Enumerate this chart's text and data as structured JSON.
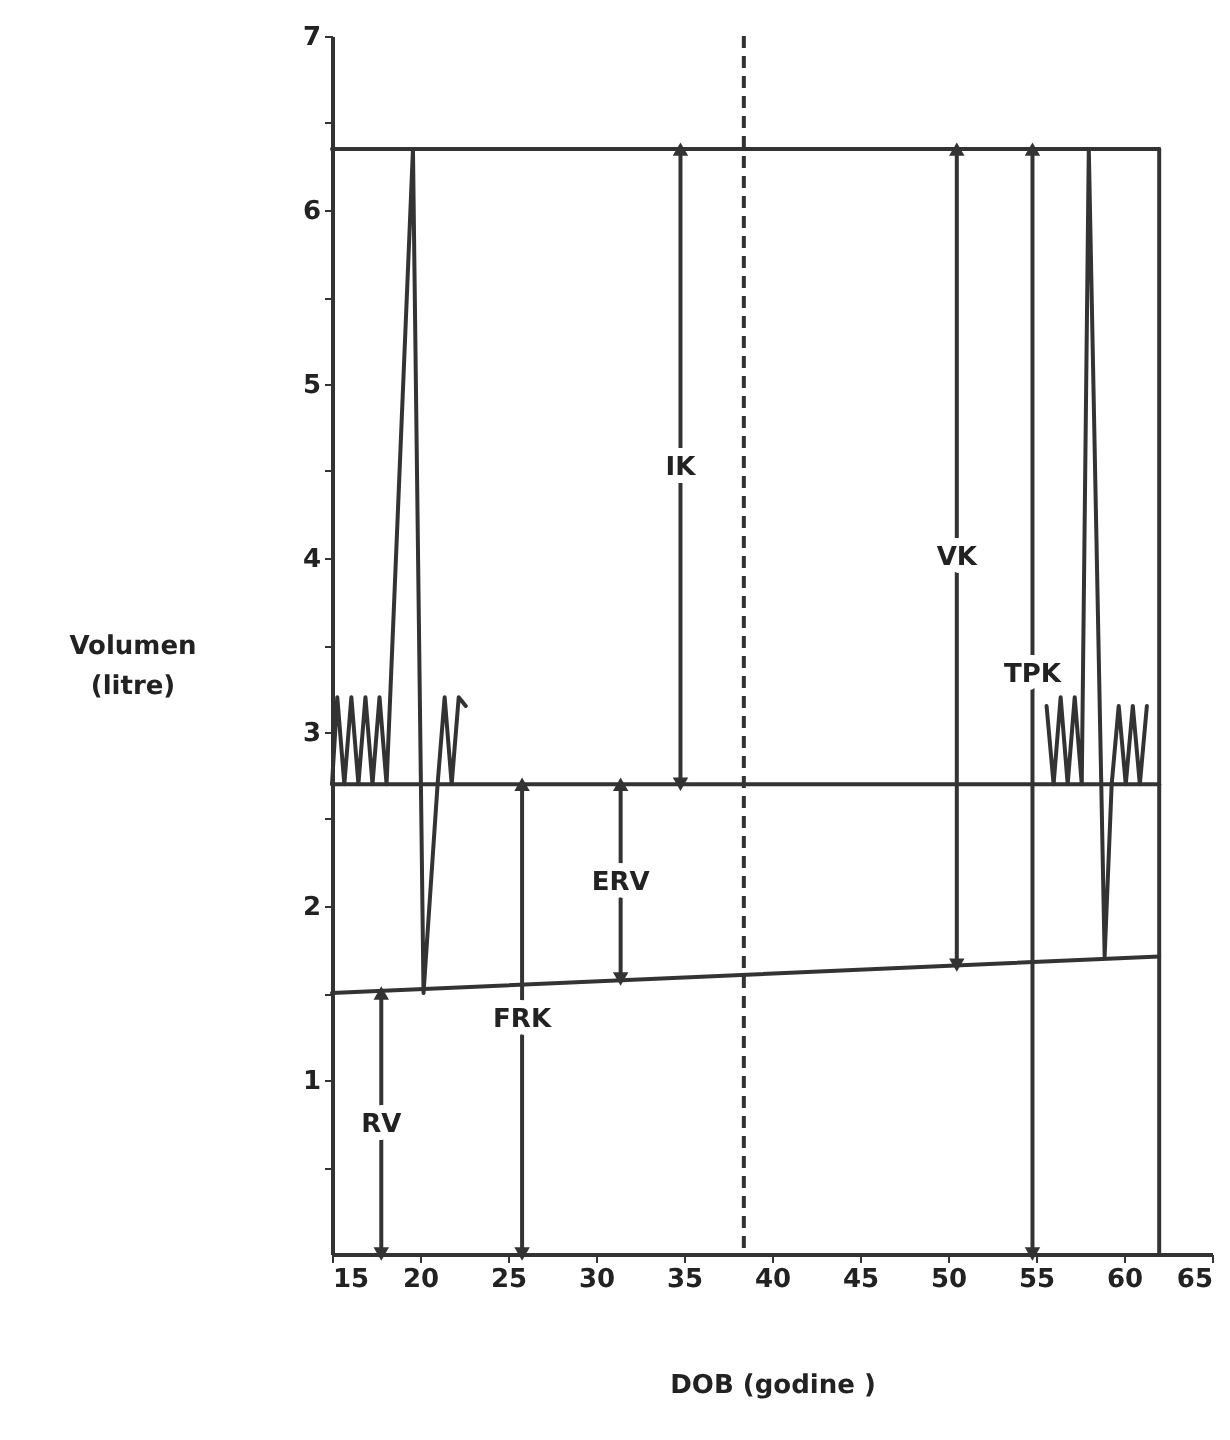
{
  "chart_data": {
    "type": "line",
    "xlabel": "DOB (godine )",
    "ylabel": "Volumen (litre)",
    "xlim": [
      15,
      65
    ],
    "ylim": [
      0,
      7
    ],
    "xticks": [
      15,
      20,
      25,
      30,
      35,
      40,
      45,
      50,
      55,
      60,
      65
    ],
    "yticks": [
      {
        "value": 0.5,
        "label": null
      },
      1,
      {
        "value": 1.5,
        "label": null
      },
      2,
      {
        "value": 2.5,
        "label": null
      },
      3,
      {
        "value": 3.5,
        "label": null
      },
      4,
      {
        "value": 4.5,
        "label": null
      },
      5,
      {
        "value": 5.5,
        "label": null
      },
      6,
      {
        "value": 6.5,
        "label": null
      },
      7
    ],
    "grid": false,
    "ref_lines": [
      {
        "axis": "x",
        "value": 38.4,
        "color": "#333333",
        "line_style": "dashed"
      }
    ],
    "series": [
      {
        "color": "#333333",
        "x": [
          15,
          62
        ],
        "values": [
          6.35,
          6.35
        ]
      },
      {
        "color": "#333333",
        "x": [
          15,
          62
        ],
        "values": [
          2.7,
          2.7
        ]
      },
      {
        "color": "#333333",
        "x": [
          15,
          62
        ],
        "values": [
          1.5,
          1.71
        ]
      },
      {
        "color": "#333333",
        "x": [
          62,
          62
        ],
        "values": [
          0,
          6.35
        ]
      },
      {
        "color": "#333333",
        "x": [
          15,
          15.3,
          15.7,
          16.1,
          16.5,
          16.9,
          17.3,
          17.7,
          18.1,
          19.6,
          20.2,
          21.0,
          21.4,
          21.8,
          22.2,
          22.6
        ],
        "values": [
          2.7,
          3.2,
          2.7,
          3.2,
          2.7,
          3.2,
          2.7,
          3.2,
          2.7,
          6.35,
          1.5,
          2.7,
          3.2,
          2.7,
          3.2,
          3.15
        ]
      },
      {
        "color": "#333333",
        "x": [
          55.6,
          56.0,
          56.4,
          56.8,
          57.2,
          57.6,
          58.0,
          58.9,
          59.3,
          59.7,
          60.1,
          60.5,
          60.9,
          61.3
        ],
        "values": [
          3.15,
          2.7,
          3.2,
          2.7,
          3.2,
          2.7,
          6.35,
          1.71,
          2.7,
          3.15,
          2.7,
          3.15,
          2.7,
          3.15
        ]
      },
      {
        "name": "IK",
        "color": "#333333",
        "marker": "triangle",
        "x": [
          34.8,
          34.8
        ],
        "values": [
          2.7,
          6.35
        ]
      },
      {
        "name": "ERV",
        "color": "#333333",
        "marker": "triangle",
        "x": [
          31.4,
          31.4
        ],
        "values": [
          1.58,
          2.7
        ]
      },
      {
        "name": "FRK",
        "color": "#333333",
        "marker": "triangle",
        "x": [
          25.8,
          25.8
        ],
        "values": [
          0,
          2.7
        ]
      },
      {
        "name": "RV",
        "color": "#333333",
        "marker": "triangle",
        "x": [
          17.8,
          17.8
        ],
        "values": [
          0,
          1.5
        ]
      },
      {
        "name": "VK",
        "color": "#333333",
        "marker": "triangle",
        "x": [
          50.5,
          50.5
        ],
        "values": [
          1.66,
          6.35
        ]
      },
      {
        "name": "TPK",
        "color": "#333333",
        "marker": "triangle",
        "x": [
          54.8,
          54.8
        ],
        "values": [
          0,
          6.35
        ]
      }
    ]
  }
}
